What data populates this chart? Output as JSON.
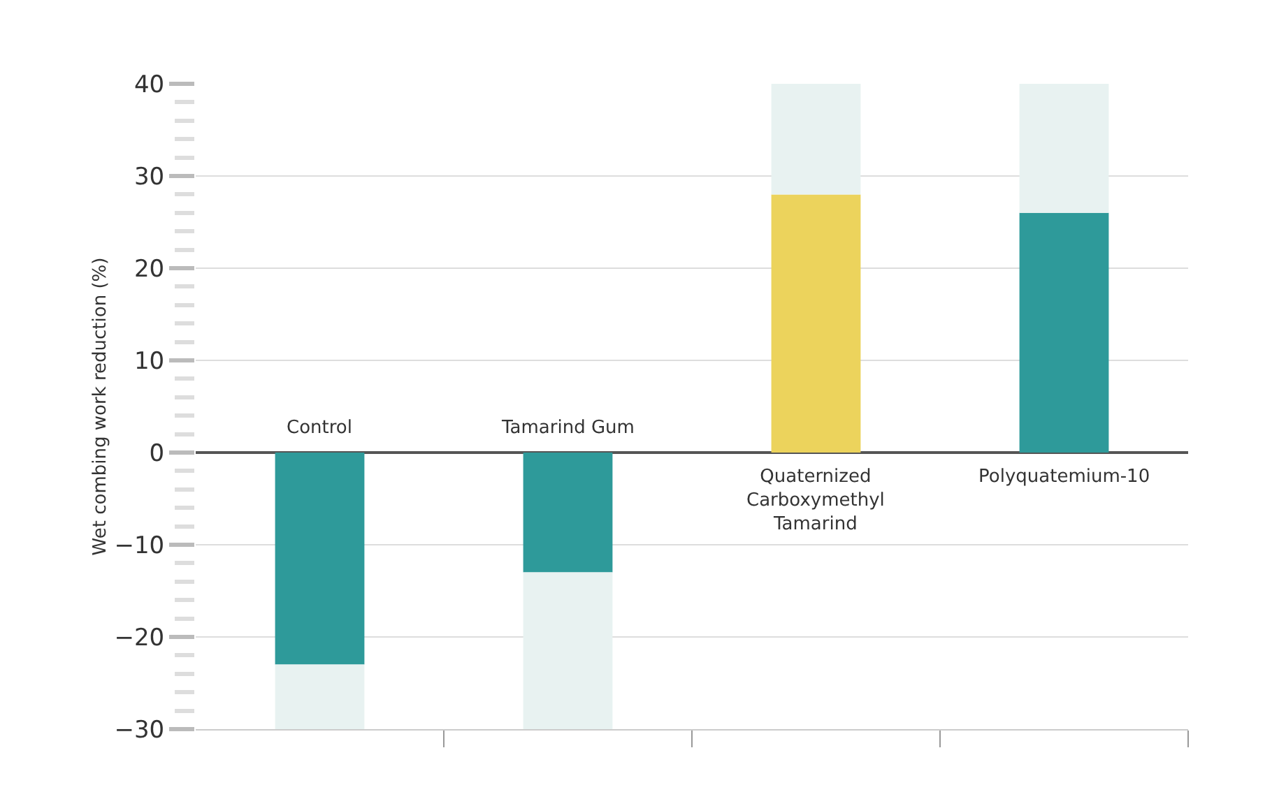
{
  "chart_data": {
    "type": "bar",
    "ylabel": "Wet combing work reduction (%)",
    "stacked": true,
    "categories": [
      "Control",
      "Tamarind Gum",
      "Quaternized\nCarboxymethyl\nTamarind",
      "Polyquatemium-10"
    ],
    "series": [
      {
        "colors": [
          "#2e9a9a",
          "#2e9a9a",
          "#ecd35c",
          "#2e9a9a"
        ],
        "values": [
          -23,
          -13,
          28,
          26
        ]
      },
      {
        "color": "#e8f2f1",
        "values": [
          -7,
          -17,
          12,
          14
        ]
      }
    ],
    "ylim": [
      -30,
      40
    ],
    "yticks": [
      -30,
      -20,
      -10,
      0,
      10,
      20,
      30,
      40
    ],
    "grid": "y"
  }
}
